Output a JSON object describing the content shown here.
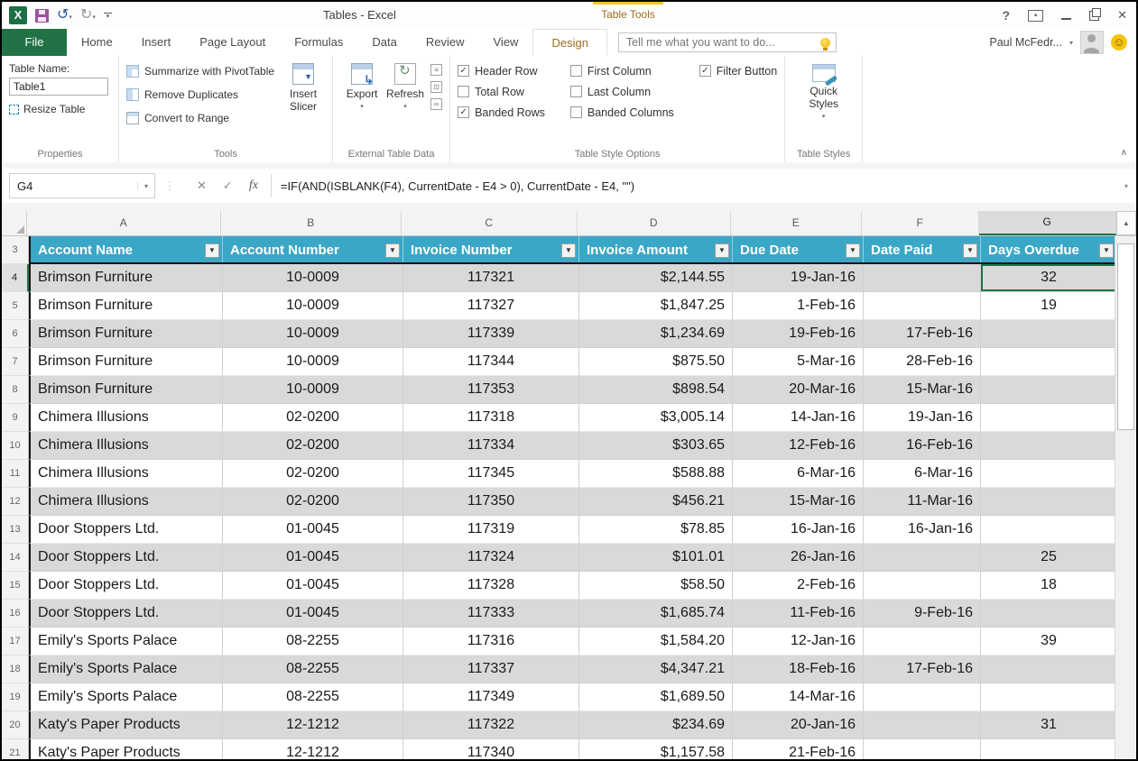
{
  "window": {
    "title": "Tables - Excel",
    "contextual_group": "Table Tools",
    "controls": {
      "help": "?",
      "minimize": "",
      "restore": "",
      "close": "✕"
    }
  },
  "account": {
    "user": "Paul McFedr..."
  },
  "search": {
    "placeholder": "Tell me what you want to do..."
  },
  "tabs": {
    "file": "File",
    "items": [
      "Home",
      "Insert",
      "Page Layout",
      "Formulas",
      "Data",
      "Review",
      "View"
    ],
    "contextual": "Design"
  },
  "ribbon": {
    "properties": {
      "title": "Properties",
      "table_name_label": "Table Name:",
      "table_name_value": "Table1",
      "resize_table": "Resize Table"
    },
    "tools": {
      "title": "Tools",
      "summarize": "Summarize with PivotTable",
      "remove_duplicates": "Remove Duplicates",
      "convert_to_range": "Convert to Range",
      "insert_slicer": "Insert Slicer"
    },
    "external": {
      "title": "External Table Data",
      "export": "Export",
      "refresh": "Refresh"
    },
    "style_options": {
      "title": "Table Style Options",
      "options": [
        {
          "label": "Header Row",
          "checked": true
        },
        {
          "label": "Total Row",
          "checked": false
        },
        {
          "label": "Banded Rows",
          "checked": true
        },
        {
          "label": "First Column",
          "checked": false
        },
        {
          "label": "Last Column",
          "checked": false
        },
        {
          "label": "Banded Columns",
          "checked": false
        },
        {
          "label": "Filter Button",
          "checked": true
        }
      ]
    },
    "table_styles": {
      "title": "Table Styles",
      "quick_styles": "Quick Styles"
    }
  },
  "formula_bar": {
    "name_box": "G4",
    "formula": "=IF(AND(ISBLANK(F4), CurrentDate - E4 > 0), CurrentDate - E4, \"\")"
  },
  "grid": {
    "header_row_number": "3",
    "columns": [
      "A",
      "B",
      "C",
      "D",
      "E",
      "F",
      "G"
    ],
    "selected_col": "G",
    "selected_row": 4,
    "selected_cell": "G4",
    "headers": [
      "Account Name",
      "Account Number",
      "Invoice Number",
      "Invoice Amount",
      "Due Date",
      "Date Paid",
      "Days Overdue"
    ],
    "rows": [
      {
        "n": 4,
        "c": [
          "Brimson Furniture",
          "10-0009",
          "117321",
          "$2,144.55",
          "19-Jan-16",
          "",
          "32"
        ]
      },
      {
        "n": 5,
        "c": [
          "Brimson Furniture",
          "10-0009",
          "117327",
          "$1,847.25",
          "1-Feb-16",
          "",
          "19"
        ]
      },
      {
        "n": 6,
        "c": [
          "Brimson Furniture",
          "10-0009",
          "117339",
          "$1,234.69",
          "19-Feb-16",
          "17-Feb-16",
          ""
        ]
      },
      {
        "n": 7,
        "c": [
          "Brimson Furniture",
          "10-0009",
          "117344",
          "$875.50",
          "5-Mar-16",
          "28-Feb-16",
          ""
        ]
      },
      {
        "n": 8,
        "c": [
          "Brimson Furniture",
          "10-0009",
          "117353",
          "$898.54",
          "20-Mar-16",
          "15-Mar-16",
          ""
        ]
      },
      {
        "n": 9,
        "c": [
          "Chimera Illusions",
          "02-0200",
          "117318",
          "$3,005.14",
          "14-Jan-16",
          "19-Jan-16",
          ""
        ]
      },
      {
        "n": 10,
        "c": [
          "Chimera Illusions",
          "02-0200",
          "117334",
          "$303.65",
          "12-Feb-16",
          "16-Feb-16",
          ""
        ]
      },
      {
        "n": 11,
        "c": [
          "Chimera Illusions",
          "02-0200",
          "117345",
          "$588.88",
          "6-Mar-16",
          "6-Mar-16",
          ""
        ]
      },
      {
        "n": 12,
        "c": [
          "Chimera Illusions",
          "02-0200",
          "117350",
          "$456.21",
          "15-Mar-16",
          "11-Mar-16",
          ""
        ]
      },
      {
        "n": 13,
        "c": [
          "Door Stoppers Ltd.",
          "01-0045",
          "117319",
          "$78.85",
          "16-Jan-16",
          "16-Jan-16",
          ""
        ]
      },
      {
        "n": 14,
        "c": [
          "Door Stoppers Ltd.",
          "01-0045",
          "117324",
          "$101.01",
          "26-Jan-16",
          "",
          "25"
        ]
      },
      {
        "n": 15,
        "c": [
          "Door Stoppers Ltd.",
          "01-0045",
          "117328",
          "$58.50",
          "2-Feb-16",
          "",
          "18"
        ]
      },
      {
        "n": 16,
        "c": [
          "Door Stoppers Ltd.",
          "01-0045",
          "117333",
          "$1,685.74",
          "11-Feb-16",
          "9-Feb-16",
          ""
        ]
      },
      {
        "n": 17,
        "c": [
          "Emily's Sports Palace",
          "08-2255",
          "117316",
          "$1,584.20",
          "12-Jan-16",
          "",
          "39"
        ]
      },
      {
        "n": 18,
        "c": [
          "Emily's Sports Palace",
          "08-2255",
          "117337",
          "$4,347.21",
          "18-Feb-16",
          "17-Feb-16",
          ""
        ]
      },
      {
        "n": 19,
        "c": [
          "Emily's Sports Palace",
          "08-2255",
          "117349",
          "$1,689.50",
          "14-Mar-16",
          "",
          ""
        ]
      },
      {
        "n": 20,
        "c": [
          "Katy's Paper Products",
          "12-1212",
          "117322",
          "$234.69",
          "20-Jan-16",
          "",
          "31"
        ]
      },
      {
        "n": 21,
        "c": [
          "Katy's Paper Products",
          "12-1212",
          "117340",
          "$1,157.58",
          "21-Feb-16",
          "",
          ""
        ]
      }
    ]
  },
  "colors": {
    "accent_green": "#217346",
    "header_teal": "#3ba7c6",
    "band_gray": "#d9d9d9",
    "contextual_gold": "#9c6b1d",
    "highlight_yellow": "#f2c811"
  }
}
